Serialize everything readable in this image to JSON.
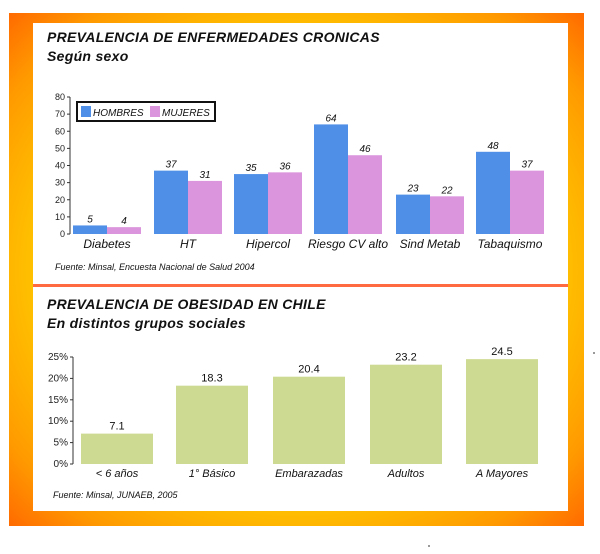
{
  "colors": {
    "frame_outer": "#ff6a00",
    "frame_inner": "#fff700",
    "divider": "#ff6a40",
    "hombres": "#4f8fe8",
    "mujeres": "#da95dc",
    "obesity_bar": "#cdda91"
  },
  "chart_data": [
    {
      "type": "bar",
      "title": "PREVALENCIA DE ENFERMEDADES CRONICAS",
      "subtitle": "Según sexo",
      "categories": [
        "Diabetes",
        "HT",
        "Hipercol",
        "Riesgo CV alto",
        "Sind Metab",
        "Tabaquismo"
      ],
      "series": [
        {
          "name": "HOMBRES",
          "color": "#4f8fe8",
          "values": [
            5,
            37,
            35,
            64,
            23,
            48
          ]
        },
        {
          "name": "MUJERES",
          "color": "#da95dc",
          "values": [
            4,
            31,
            36,
            46,
            22,
            37
          ]
        }
      ],
      "ylim": [
        0,
        80
      ],
      "yticks": [
        "0",
        "10",
        "20",
        "30",
        "40",
        "50",
        "60",
        "70",
        "80"
      ],
      "legend": "top-left",
      "grid": false,
      "source": "Fuente: Minsal, Encuesta Nacional de Salud 2004"
    },
    {
      "type": "bar",
      "title": "PREVALENCIA DE OBESIDAD EN CHILE",
      "subtitle": "En distintos grupos sociales",
      "categories": [
        "< 6 años",
        "1° Básico",
        "Embarazadas",
        "Adultos",
        "A Mayores"
      ],
      "values": [
        7.1,
        18.3,
        20.4,
        23.2,
        24.5
      ],
      "ylim": [
        0,
        25
      ],
      "yticks": [
        "0%",
        "5%",
        "10%",
        "15%",
        "20%",
        "25%"
      ],
      "grid": false,
      "source": "Fuente: Minsal, JUNAEB, 2005"
    }
  ]
}
